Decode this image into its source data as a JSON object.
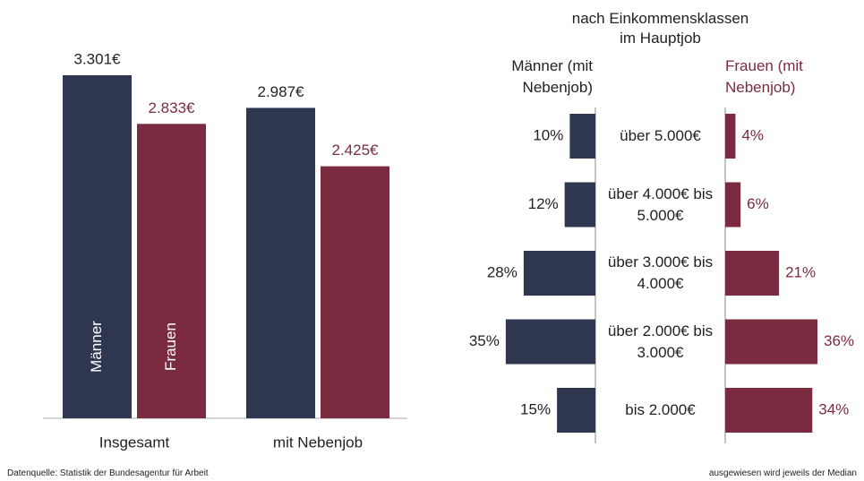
{
  "chart_data": [
    {
      "type": "bar",
      "categories": [
        "Insgesamt",
        "mit Nebenjob"
      ],
      "series": [
        {
          "name": "Männer",
          "color": "#2e374f",
          "values": [
            3301,
            2987
          ],
          "value_labels": [
            "3.301€",
            "2.987€"
          ]
        },
        {
          "name": "Frauen",
          "color": "#7b2b3f",
          "values": [
            2833,
            2425
          ],
          "value_labels": [
            "2.833€",
            "2.425€"
          ]
        }
      ]
    },
    {
      "type": "butterfly",
      "title": "nach Einkommensklassen im Hauptjob",
      "categories": [
        "über 5.000€",
        "über 4.000€ bis 5.000€",
        "über 3.000€ bis 4.000€",
        "über 2.000€ bis 3.000€",
        "bis 2.000€"
      ],
      "series": [
        {
          "name": "Männer (mit Nebenjob)",
          "color": "#2e374f",
          "values": [
            10,
            12,
            28,
            35,
            15
          ],
          "value_labels": [
            "10%",
            "12%",
            "28%",
            "35%",
            "15%"
          ]
        },
        {
          "name": "Frauen (mit Nebenjob)",
          "color": "#7b2b3f",
          "values": [
            4,
            6,
            21,
            36,
            34
          ],
          "value_labels": [
            "4%",
            "6%",
            "21%",
            "36%",
            "34%"
          ]
        }
      ]
    }
  ],
  "footer": {
    "source": "Datenquelle:  Statistik der Bundesagentur für Arbeit",
    "note": "ausgewiesen wird jeweils der Median"
  }
}
